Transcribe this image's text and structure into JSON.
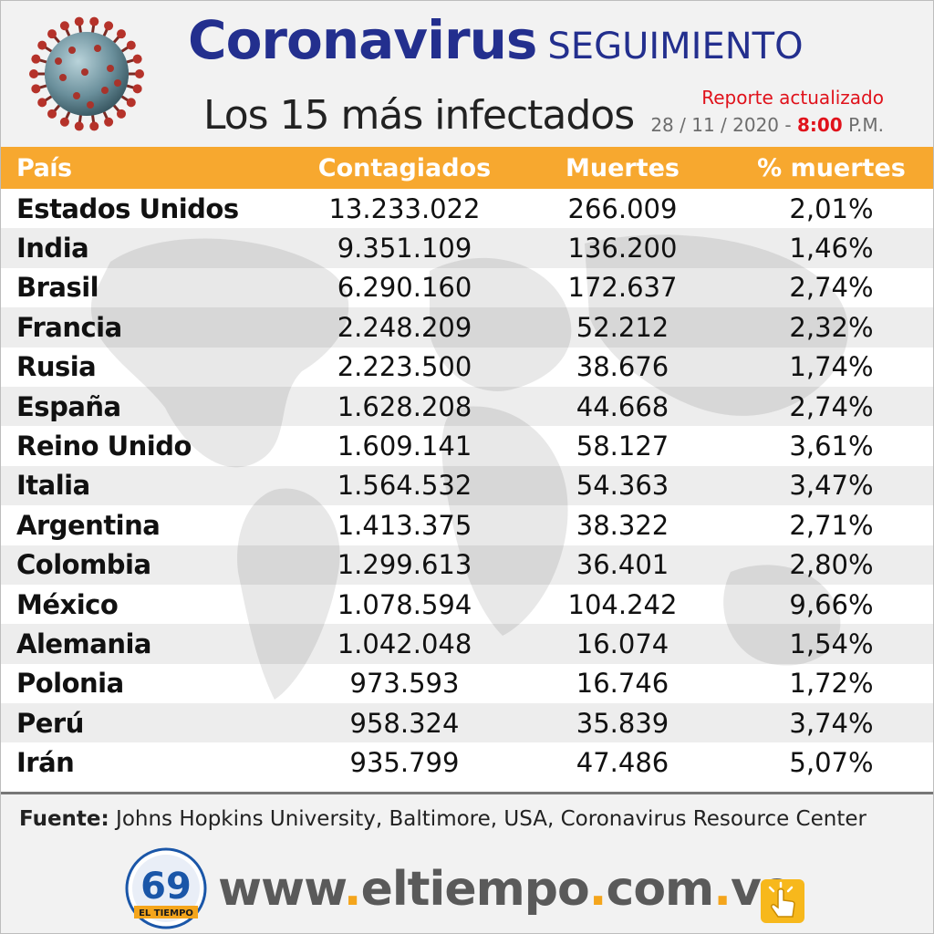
{
  "header": {
    "title_main": "Coronavirus",
    "title_secondary": "SEGUIMIENTO",
    "subtitle": "Los 15 más infectados",
    "report_label": "Reporte actualizado",
    "report_date": "28 / 11 / 2020 -",
    "report_time": "8:00",
    "report_ampm": "P.M."
  },
  "table": {
    "headers": [
      "País",
      "Contagiados",
      "Muertes",
      "% muertes"
    ],
    "rows": [
      {
        "country": "Estados Unidos",
        "cases": "13.233.022",
        "deaths": "266.009",
        "pct": "2,01%"
      },
      {
        "country": "India",
        "cases": "9.351.109",
        "deaths": "136.200",
        "pct": "1,46%"
      },
      {
        "country": "Brasil",
        "cases": "6.290.160",
        "deaths": "172.637",
        "pct": "2,74%"
      },
      {
        "country": "Francia",
        "cases": "2.248.209",
        "deaths": "52.212",
        "pct": "2,32%"
      },
      {
        "country": "Rusia",
        "cases": "2.223.500",
        "deaths": "38.676",
        "pct": "1,74%"
      },
      {
        "country": "España",
        "cases": "1.628.208",
        "deaths": "44.668",
        "pct": "2,74%"
      },
      {
        "country": "Reino Unido",
        "cases": "1.609.141",
        "deaths": "58.127",
        "pct": "3,61%"
      },
      {
        "country": "Italia",
        "cases": "1.564.532",
        "deaths": "54.363",
        "pct": "3,47%"
      },
      {
        "country": "Argentina",
        "cases": "1.413.375",
        "deaths": "38.322",
        "pct": "2,71%"
      },
      {
        "country": "Colombia",
        "cases": "1.299.613",
        "deaths": "36.401",
        "pct": "2,80%"
      },
      {
        "country": "México",
        "cases": "1.078.594",
        "deaths": "104.242",
        "pct": "9,66%"
      },
      {
        "country": "Alemania",
        "cases": "1.042.048",
        "deaths": "16.074",
        "pct": "1,54%"
      },
      {
        "country": "Polonia",
        "cases": "973.593",
        "deaths": "16.746",
        "pct": "1,72%"
      },
      {
        "country": "Perú",
        "cases": "958.324",
        "deaths": "35.839",
        "pct": "3,74%"
      },
      {
        "country": "Irán",
        "cases": "935.799",
        "deaths": "47.486",
        "pct": "5,07%"
      }
    ]
  },
  "footer": {
    "source_label": "Fuente:",
    "source_text": "Johns Hopkins University, Baltimore, USA, Coronavirus Resource Center",
    "logo_number": "69",
    "logo_name": "EL TIEMPO",
    "url_parts": [
      "www",
      ".",
      "eltiempo",
      ".",
      "com",
      ".",
      "ve"
    ]
  },
  "colors": {
    "title_blue": "#232f8e",
    "header_orange": "#f7a82f",
    "accent_red": "#e0121b",
    "dot_orange": "#f4a51c"
  },
  "icons": [
    "coronavirus-icon",
    "world-map-background",
    "el-tiempo-logo",
    "hand-click-icon"
  ]
}
